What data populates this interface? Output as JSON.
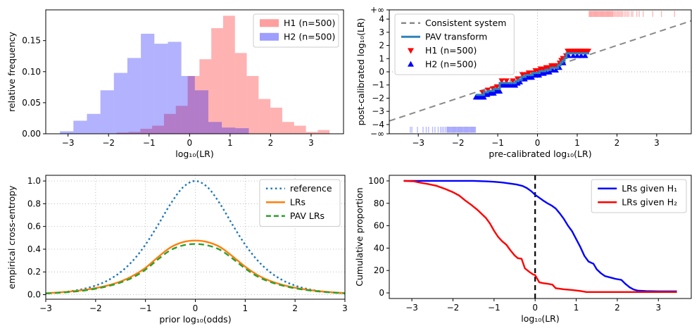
{
  "figure": {
    "background": "#ffffff"
  },
  "chart_data": [
    {
      "id": "histogram",
      "type": "histogram",
      "xlabel": "log₁₀(LR)",
      "ylabel": "relative frequency",
      "xlim": [
        -3.55,
        3.8
      ],
      "ylim": [
        0,
        0.1995
      ],
      "xticks": [
        -3,
        -2,
        -1,
        0,
        1,
        2,
        3
      ],
      "xtick_labels": [
        "−3",
        "−2",
        "−1",
        "0",
        "1",
        "2",
        "3"
      ],
      "yticks": [
        0,
        0.05,
        0.1,
        0.15
      ],
      "ytick_labels": [
        "0.00",
        "0.05",
        "0.10",
        "0.15"
      ],
      "grid": false,
      "series": [
        {
          "name": "H1 (n=500)",
          "color": "#ff0000",
          "fill_alpha": 0.3,
          "bin_start": -1.8,
          "bin_width": 0.292,
          "values": [
            0.002,
            0.003,
            0.008,
            0.013,
            0.032,
            0.045,
            0.093,
            0.12,
            0.17,
            0.19,
            0.13,
            0.093,
            0.056,
            0.042,
            0.019,
            0.013,
            0.003,
            0.006
          ]
        },
        {
          "name": "H2 (n=500)",
          "color": "#0000ff",
          "fill_alpha": 0.3,
          "bin_start": -3.2,
          "bin_width": 0.333,
          "values": [
            0.004,
            0.021,
            0.032,
            0.07,
            0.098,
            0.122,
            0.161,
            0.145,
            0.148,
            0.093,
            0.07,
            0.019,
            0.01,
            0.009
          ]
        }
      ],
      "legend": {
        "position": "top-right",
        "entries": [
          {
            "swatch": "patch",
            "color": "#ff0000",
            "alpha": 0.38,
            "label": "H1 (n=500)"
          },
          {
            "swatch": "patch",
            "color": "#0000ff",
            "alpha": 0.38,
            "label": "H2 (n=500)"
          }
        ]
      }
    },
    {
      "id": "pav-calibration",
      "type": "calibration",
      "xlabel": "pre-calibrated log₁₀(LR)",
      "ylabel": "post-calibrated log₁₀(LR)",
      "xlim": [
        -3.73,
        3.87
      ],
      "ylim": [
        -4.7,
        4.7
      ],
      "xticks": [
        -3,
        -2,
        -1,
        0,
        1,
        2,
        3
      ],
      "xtick_labels": [
        "−3",
        "−2",
        "−1",
        "0",
        "1",
        "2",
        "3"
      ],
      "yticks": [
        4.7,
        4,
        3,
        2,
        1,
        0,
        -1,
        -2,
        -3,
        -4,
        -4.7
      ],
      "ytick_labels": [
        "+∞",
        "4",
        "3",
        "2",
        "1",
        "0",
        "−1",
        "−2",
        "−3",
        "−4",
        "−∞"
      ],
      "zero_lines": true,
      "identity": {
        "label": "Consistent system",
        "color": "#8a8a8a"
      },
      "pav": {
        "label": "PAV transform",
        "color": "#2f82b8",
        "points": [
          [
            -1.55,
            -1.75
          ],
          [
            -1.35,
            -1.75
          ],
          [
            -1.35,
            -1.55
          ],
          [
            -1.25,
            -1.55
          ],
          [
            -1.25,
            -1.45
          ],
          [
            -1.1,
            -1.45
          ],
          [
            -1.1,
            -1.3
          ],
          [
            -0.95,
            -1.3
          ],
          [
            -0.95,
            -0.85
          ],
          [
            -0.55,
            -0.85
          ],
          [
            -0.55,
            -0.7
          ],
          [
            -0.48,
            -0.7
          ],
          [
            -0.48,
            -0.6
          ],
          [
            -0.4,
            -0.6
          ],
          [
            -0.4,
            -0.38
          ],
          [
            -0.3,
            -0.38
          ],
          [
            -0.3,
            -0.25
          ],
          [
            -0.12,
            -0.25
          ],
          [
            -0.12,
            -0.08
          ],
          [
            0.05,
            -0.08
          ],
          [
            0.05,
            0.05
          ],
          [
            0.2,
            0.05
          ],
          [
            0.2,
            0.15
          ],
          [
            0.33,
            0.15
          ],
          [
            0.33,
            0.3
          ],
          [
            0.52,
            0.3
          ],
          [
            0.52,
            0.5
          ],
          [
            0.58,
            0.5
          ],
          [
            0.58,
            0.7
          ],
          [
            0.63,
            0.7
          ],
          [
            0.63,
            0.85
          ],
          [
            0.68,
            0.85
          ],
          [
            0.68,
            1.05
          ],
          [
            0.73,
            1.05
          ],
          [
            0.73,
            1.4
          ],
          [
            1.3,
            1.4
          ]
        ]
      },
      "h1": {
        "label": "H1 (n=500)",
        "color": "#ff0000",
        "marker": "triangle-down",
        "x": [
          -1.38,
          -1.25,
          -1.12,
          -1.02,
          -0.9,
          -0.78,
          -0.62,
          -0.5,
          -0.38,
          -0.3,
          -0.22,
          -0.12,
          -0.05,
          0.02,
          0.08,
          0.15,
          0.22,
          0.28,
          0.35,
          0.42,
          0.48,
          0.52,
          0.56,
          0.6,
          0.64,
          0.68,
          0.72,
          0.76,
          0.8,
          0.84,
          0.88,
          0.92,
          0.96,
          1.0,
          1.04,
          1.08,
          1.12,
          1.16,
          1.2,
          1.24,
          1.28
        ]
      },
      "h2": {
        "label": "H2 (n=500)",
        "color": "#0000ff",
        "marker": "triangle-up",
        "x": [
          -1.55,
          -1.5,
          -1.45,
          -1.4,
          -1.35,
          -1.3,
          -1.26,
          -1.22,
          -1.18,
          -1.14,
          -1.1,
          -1.05,
          -1.0,
          -0.95,
          -0.9,
          -0.85,
          -0.8,
          -0.74,
          -0.68,
          -0.62,
          -0.56,
          -0.5,
          -0.44,
          -0.38,
          -0.32,
          -0.26,
          -0.2,
          -0.14,
          -0.08,
          -0.02,
          0.04,
          0.1,
          0.16,
          0.22,
          0.3,
          0.38,
          0.46,
          0.55,
          0.65,
          0.78,
          0.9,
          1.0,
          1.1,
          1.2
        ]
      },
      "rug_top": {
        "color": "#ff0000",
        "x": [
          1.3,
          1.32,
          1.34,
          1.36,
          1.38,
          1.4,
          1.42,
          1.44,
          1.46,
          1.48,
          1.5,
          1.52,
          1.54,
          1.56,
          1.58,
          1.6,
          1.62,
          1.64,
          1.66,
          1.68,
          1.7,
          1.72,
          1.74,
          1.76,
          1.78,
          1.8,
          1.82,
          1.84,
          1.86,
          1.88,
          1.9,
          1.93,
          1.96,
          1.99,
          2.02,
          2.05,
          2.08,
          2.11,
          2.14,
          2.18,
          2.22,
          2.26,
          2.3,
          2.36,
          2.4,
          2.5,
          2.56,
          2.66,
          2.9,
          3.12,
          3.45
        ]
      },
      "rug_bottom": {
        "color": "#0000ff",
        "x": [
          -3.2,
          -3.16,
          -3.02,
          -2.88,
          -2.8,
          -2.74,
          -2.64,
          -2.58,
          -2.5,
          -2.44,
          -2.4,
          -2.36,
          -2.32,
          -2.28,
          -2.26,
          -2.24,
          -2.22,
          -2.2,
          -2.18,
          -2.16,
          -2.14,
          -2.12,
          -2.1,
          -2.08,
          -2.06,
          -2.04,
          -2.02,
          -2.0,
          -1.98,
          -1.96,
          -1.94,
          -1.92,
          -1.9,
          -1.88,
          -1.86,
          -1.84,
          -1.82,
          -1.8,
          -1.78,
          -1.76,
          -1.74,
          -1.72,
          -1.7,
          -1.68,
          -1.66,
          -1.64,
          -1.62,
          -1.6,
          -1.58,
          -1.56
        ]
      },
      "legend": {
        "position": "top-left",
        "entries": [
          {
            "swatch": "line",
            "dash": "7 5",
            "color": "#8a8a8a",
            "label": "Consistent system"
          },
          {
            "swatch": "line",
            "color": "#2f82b8",
            "width": 3,
            "label": "PAV transform"
          },
          {
            "swatch": "triangle-down",
            "color": "#ff0000",
            "label": "H1 (n=500)"
          },
          {
            "swatch": "triangle-up",
            "color": "#0000ff",
            "label": "H2 (n=500)"
          }
        ]
      }
    },
    {
      "id": "ece",
      "type": "lines",
      "smooth": true,
      "grid": true,
      "xlabel": "prior log₁₀(odds)",
      "ylabel": "empirical cross-entropy",
      "xlim": [
        -3,
        3
      ],
      "ylim": [
        -0.04,
        1.05
      ],
      "xticks": [
        -3,
        -2,
        -1,
        0,
        1,
        2,
        3
      ],
      "xtick_labels": [
        "−3",
        "−2",
        "−1",
        "0",
        "1",
        "2",
        "3"
      ],
      "yticks": [
        0,
        0.2,
        0.4,
        0.6,
        0.8,
        1.0
      ],
      "ytick_labels": [
        "0.0",
        "0.2",
        "0.4",
        "0.6",
        "0.8",
        "1.0"
      ],
      "x": [
        -3,
        -2.75,
        -2.5,
        -2.25,
        -2,
        -1.75,
        -1.5,
        -1.25,
        -1,
        -0.75,
        -0.5,
        -0.25,
        0,
        0.25,
        0.5,
        0.75,
        1,
        1.25,
        1.5,
        1.75,
        2,
        2.25,
        2.5,
        2.75,
        3
      ],
      "series": [
        {
          "name": "reference",
          "color": "#1f77b4",
          "style": "dotted",
          "values": [
            0.011,
            0.019,
            0.031,
            0.05,
            0.08,
            0.127,
            0.198,
            0.3,
            0.44,
            0.612,
            0.796,
            0.943,
            1.0,
            0.943,
            0.796,
            0.612,
            0.44,
            0.3,
            0.198,
            0.127,
            0.08,
            0.05,
            0.031,
            0.019,
            0.011
          ]
        },
        {
          "name": "LRs",
          "color": "#ff7f0e",
          "style": "solid",
          "values": [
            0.013,
            0.019,
            0.028,
            0.04,
            0.058,
            0.082,
            0.116,
            0.166,
            0.236,
            0.33,
            0.415,
            0.462,
            0.476,
            0.462,
            0.418,
            0.336,
            0.246,
            0.172,
            0.121,
            0.086,
            0.061,
            0.043,
            0.03,
            0.021,
            0.014
          ]
        },
        {
          "name": "PAV LRs",
          "color": "#2ca02c",
          "style": "dashed",
          "values": [
            0.011,
            0.016,
            0.024,
            0.035,
            0.052,
            0.075,
            0.107,
            0.152,
            0.22,
            0.31,
            0.391,
            0.433,
            0.446,
            0.433,
            0.393,
            0.316,
            0.23,
            0.159,
            0.112,
            0.08,
            0.056,
            0.039,
            0.027,
            0.018,
            0.012
          ]
        }
      ],
      "legend": {
        "position": "top-right",
        "entries": [
          {
            "swatch": "line",
            "dash": "2.5 4",
            "color": "#1f77b4",
            "label": "reference"
          },
          {
            "swatch": "line",
            "color": "#ff7f0e",
            "label": "LRs"
          },
          {
            "swatch": "line",
            "dash": "7 4",
            "color": "#2ca02c",
            "label": "PAV LRs"
          }
        ]
      }
    },
    {
      "id": "tippett",
      "type": "lines",
      "smooth": false,
      "grid": false,
      "xlabel": "log₁₀(LR)",
      "ylabel": "Cumulative proportion",
      "xlim": [
        -3.55,
        3.8
      ],
      "ylim": [
        -5,
        105
      ],
      "xticks": [
        -3,
        -2,
        -1,
        0,
        1,
        2,
        3
      ],
      "xtick_labels": [
        "−3",
        "−2",
        "−1",
        "0",
        "1",
        "2",
        "3"
      ],
      "yticks": [
        0,
        20,
        40,
        60,
        80,
        100
      ],
      "ytick_labels": [
        "0",
        "20",
        "40",
        "60",
        "80",
        "100"
      ],
      "vline": {
        "x": 0,
        "color": "#000000",
        "dash": "7 5"
      },
      "series": [
        {
          "name": "LRs given H₁",
          "color": "#0000ff",
          "x": [
            -3.2,
            -1.5,
            -1.2,
            -1.0,
            -0.8,
            -0.6,
            -0.45,
            -0.3,
            -0.2,
            -0.1,
            0,
            0.1,
            0.2,
            0.3,
            0.4,
            0.5,
            0.6,
            0.7,
            0.8,
            0.9,
            1.0,
            1.1,
            1.2,
            1.3,
            1.42,
            1.5,
            1.6,
            1.7,
            1.85,
            1.95,
            2.1,
            2.2,
            2.3,
            2.4,
            2.5,
            2.7,
            3.0,
            3.45
          ],
          "values": [
            100,
            100,
            99.6,
            99.2,
            98.6,
            97.6,
            96.8,
            95.4,
            93.6,
            91,
            87.6,
            85,
            82.4,
            80,
            78,
            75.4,
            71,
            66,
            60,
            55,
            48,
            41,
            33,
            28,
            26,
            21,
            17.6,
            15,
            13.6,
            12.6,
            11.6,
            8,
            5,
            3,
            2,
            1.6,
            1.4,
            1.4
          ]
        },
        {
          "name": "LRs given H₂",
          "color": "#ff0000",
          "x": [
            -3.2,
            -2.95,
            -2.8,
            -2.6,
            -2.4,
            -2.2,
            -2.0,
            -1.85,
            -1.7,
            -1.55,
            -1.4,
            -1.3,
            -1.2,
            -1.1,
            -1.0,
            -0.9,
            -0.8,
            -0.7,
            -0.6,
            -0.5,
            -0.42,
            -0.33,
            -0.25,
            -0.15,
            -0.05,
            0,
            0.1,
            0.18,
            0.3,
            0.42,
            0.5,
            0.7,
            0.9,
            1.1,
            1.25,
            3.45
          ],
          "values": [
            100,
            99.6,
            98.4,
            97.2,
            95.6,
            93,
            89.9,
            87,
            82.5,
            78.5,
            74,
            70.5,
            67,
            62,
            55.5,
            50,
            46,
            43,
            38,
            33.5,
            31,
            30.5,
            22,
            19,
            16.5,
            15.9,
            9.5,
            8.8,
            8.2,
            7.4,
            4.2,
            3.2,
            2.6,
            1.7,
            0.8,
            0.8
          ]
        }
      ],
      "legend": {
        "position": "top-right",
        "entries": [
          {
            "swatch": "line",
            "color": "#0000ff",
            "label": "LRs given H₁"
          },
          {
            "swatch": "line",
            "color": "#ff0000",
            "label": "LRs given H₂"
          }
        ]
      }
    }
  ]
}
